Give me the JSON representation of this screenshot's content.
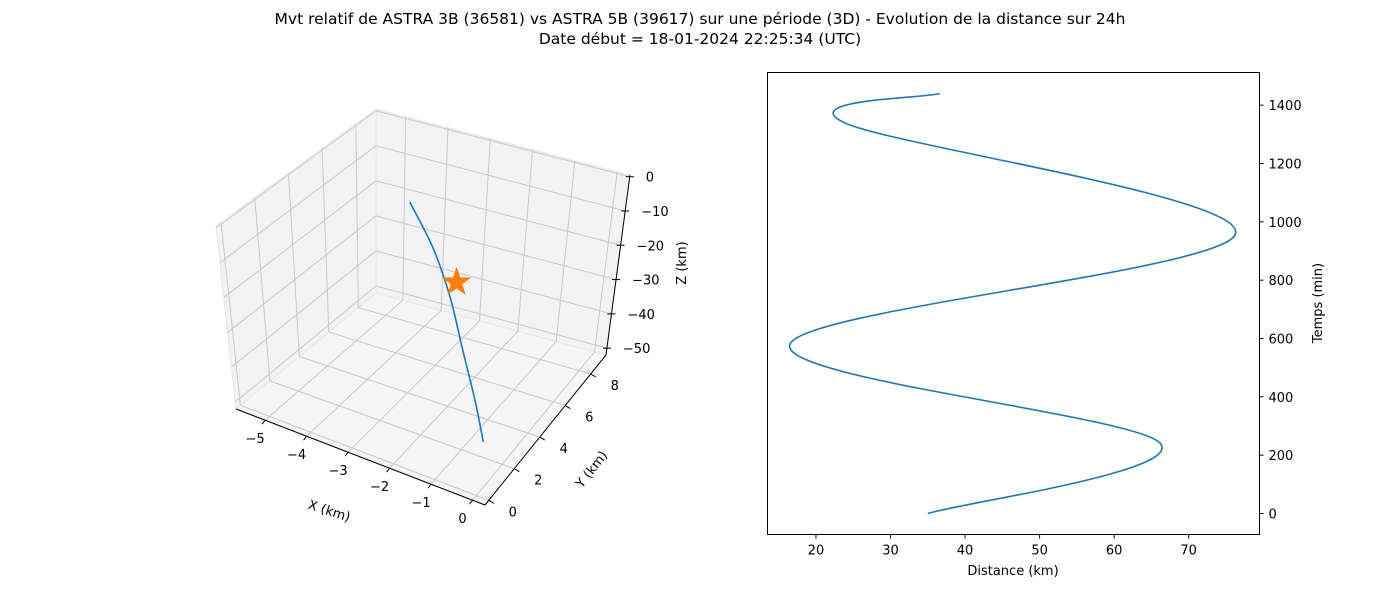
{
  "title_line1": "Mvt relatif de ASTRA 3B (36581) vs ASTRA 5B (39617) sur une période (3D) - Evolution de la distance sur 24h",
  "title_line2": "Date début = 18-01-2024 22:25:34 (UTC)",
  "colors": {
    "series": "#1f77b4",
    "marker": "#ff7f0e",
    "axis": "#000000",
    "grid": "#b0b0b0",
    "pane": "#f2f2f2"
  },
  "chart_data": [
    {
      "type": "line3d",
      "xlabel": "X (km)",
      "ylabel": "Y (km)",
      "zlabel": "Z (km)",
      "xlim": [
        -5.7,
        0.3
      ],
      "ylim": [
        -0.3,
        9.2
      ],
      "zlim": [
        -52,
        0.5
      ],
      "xticks": [
        "−5",
        "−4",
        "−3",
        "−2",
        "−1",
        "0"
      ],
      "yticks": [
        "0",
        "2",
        "4",
        "6",
        "8"
      ],
      "zticks": [
        "0",
        "−10",
        "−20",
        "−30",
        "−40",
        "−50"
      ],
      "grid": true,
      "series": [
        {
          "x": [
            -4.6,
            -3.6,
            -2.7,
            -1.9,
            -1.1,
            -0.5
          ],
          "y": [
            8.5,
            7.4,
            6.1,
            4.7,
            3.3,
            2.1
          ],
          "z": [
            -20.1,
            -26.0,
            -31.8,
            -37.6,
            -43.7,
            -48.0
          ]
        }
      ],
      "marker": {
        "shape": "star",
        "x": -2.8,
        "y": 6.8,
        "z": -30.5
      }
    },
    {
      "type": "line",
      "xlabel": "Distance (km)",
      "ylabel": "Temps (min)",
      "xlim": [
        13.5,
        79.5
      ],
      "ylim": [
        -72,
        1512
      ],
      "xticks": [
        20,
        30,
        40,
        50,
        60,
        70
      ],
      "yticks": [
        0,
        200,
        400,
        600,
        800,
        1000,
        1200,
        1400
      ],
      "y_axis_side": "right",
      "grid": false,
      "series": [
        {
          "t": [
            0,
            240,
            580,
            960,
            1340,
            1440
          ],
          "d": [
            35.0,
            66.2,
            16.5,
            76.3,
            23.8,
            36.6
          ]
        }
      ]
    }
  ]
}
